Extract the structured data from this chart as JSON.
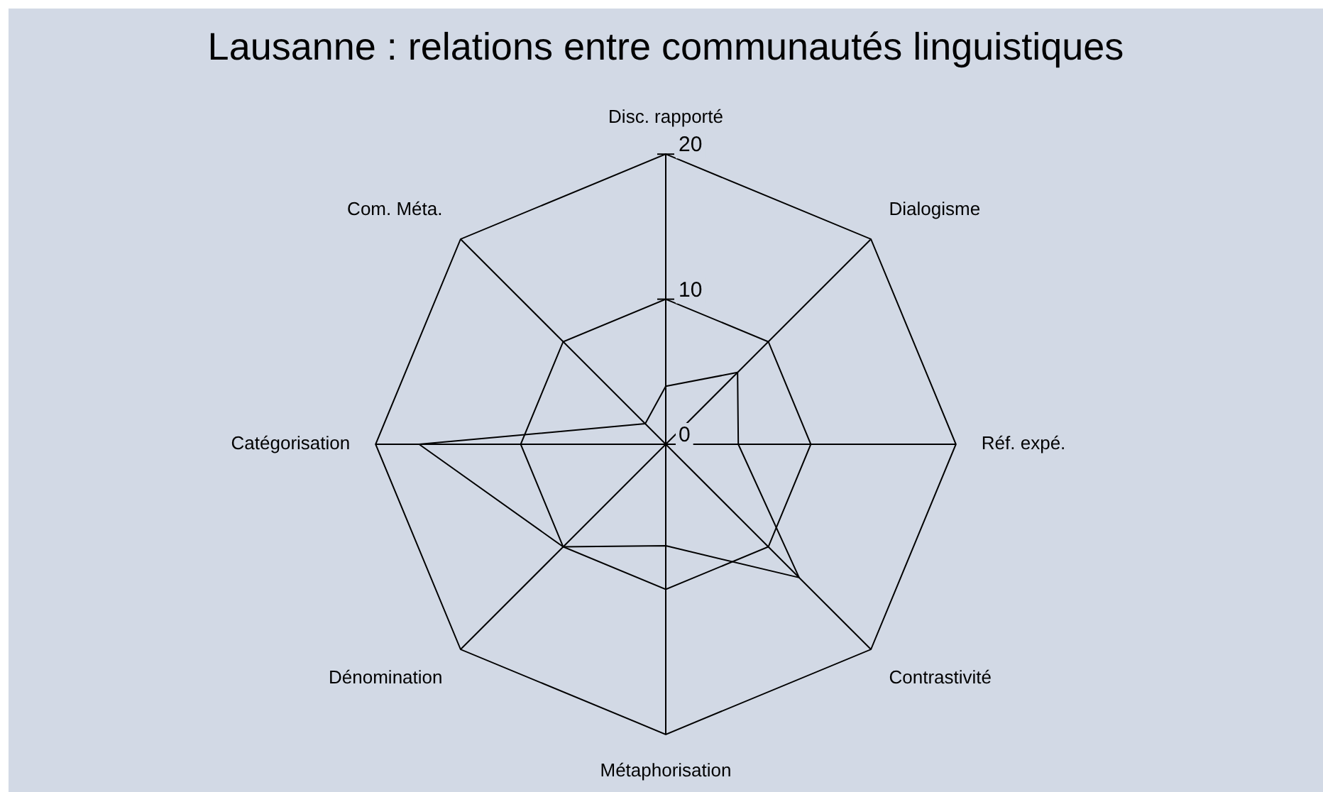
{
  "chart_data": {
    "type": "radar",
    "title": "Lausanne : relations entre communautés linguistiques",
    "categories": [
      "Disc. rapporté",
      "Dialogisme",
      "Réf. expé.",
      "Contrastivité",
      "Métaphorisation",
      "Dénomination",
      "Catégorisation",
      "Com. Méta."
    ],
    "series": [
      {
        "color": "#000000",
        "values": [
          4,
          7,
          5,
          13,
          7,
          10,
          17,
          2
        ]
      }
    ],
    "ylim": [
      0,
      20
    ],
    "yticks": [
      0,
      10,
      20
    ],
    "grid": true,
    "legend": false,
    "marker": "none"
  }
}
